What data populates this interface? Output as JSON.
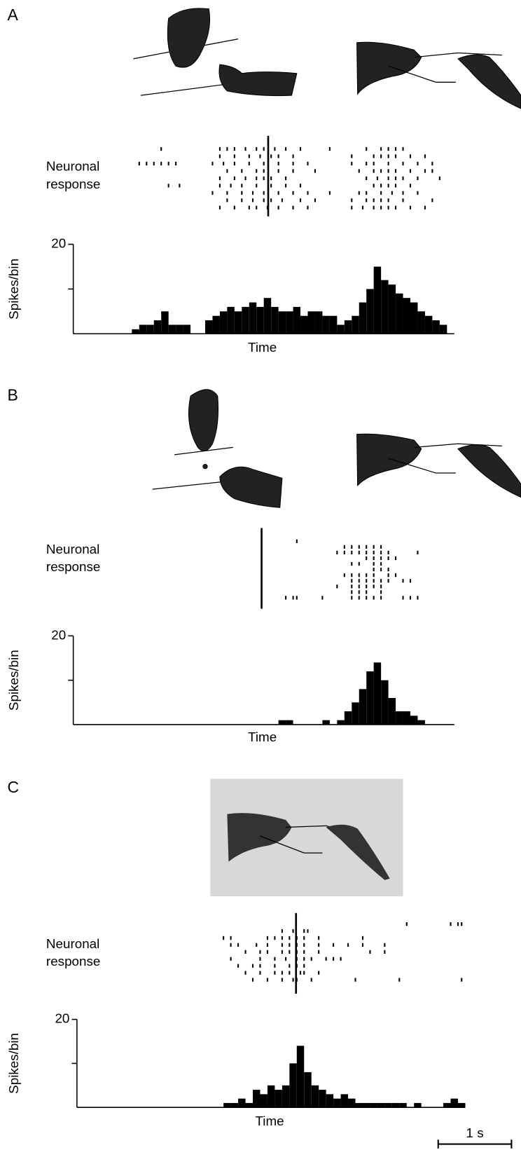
{
  "chart_data": [
    {
      "type": "histogram",
      "panel": "A",
      "raster_label": [
        "Neuronal",
        "response"
      ],
      "ylabel": "Spikes/bin",
      "xlabel": "Time",
      "color": "#000000",
      "xlim": [
        0,
        5.2
      ],
      "ylim": [
        0,
        20
      ],
      "yticks": [
        {
          "value": 10,
          "label": null
        },
        20
      ],
      "event_time": 2.66,
      "bins": [
        0,
        0.1,
        0.2,
        0.3,
        0.4,
        0.5,
        0.6,
        0.7,
        0.8,
        0.9,
        1.0,
        1.1,
        1.2,
        1.3,
        1.4,
        1.5,
        1.6,
        1.7,
        1.8,
        1.9,
        2.0,
        2.1,
        2.2,
        2.3,
        2.4,
        2.5,
        2.6,
        2.7,
        2.8,
        2.9,
        3.0,
        3.1,
        3.2,
        3.3,
        3.4,
        3.5,
        3.6,
        3.7,
        3.8,
        3.9,
        4.0,
        4.1,
        4.2,
        4.3,
        4.4,
        4.5,
        4.6,
        4.7,
        4.8,
        4.9,
        5.0,
        5.1,
        5.2
      ],
      "values": [
        0,
        0,
        0,
        0,
        0,
        0,
        0,
        0,
        1,
        2,
        2,
        3,
        5,
        2,
        2,
        2,
        0,
        0,
        3,
        4,
        5,
        6,
        5,
        6,
        7,
        6,
        8,
        6,
        5,
        5,
        6,
        4,
        5,
        5,
        4,
        4,
        2,
        3,
        4,
        7,
        10,
        15,
        12,
        11,
        9,
        8,
        7,
        5,
        4,
        3,
        2,
        0
      ],
      "raster": [
        [
          1.2,
          2.0,
          2.1,
          2.2,
          2.35,
          2.5,
          2.6,
          2.75,
          2.9,
          3.1,
          3.5,
          4.0,
          4.2,
          4.3,
          4.4,
          4.5
        ],
        [
          2.0,
          2.2,
          2.4,
          2.55,
          2.7,
          2.8,
          3.0,
          3.8,
          4.1,
          4.2,
          4.3,
          4.4,
          4.6,
          4.8
        ],
        [
          0.9,
          1.0,
          1.1,
          1.2,
          1.3,
          1.4,
          1.9,
          2.05,
          2.2,
          2.4,
          2.6,
          2.8,
          3.0,
          3.2,
          3.8,
          4.0,
          4.1,
          4.3,
          4.5,
          4.7,
          4.9
        ],
        [
          2.1,
          2.3,
          2.5,
          2.6,
          2.8,
          3.0,
          3.3,
          3.9,
          4.1,
          4.2,
          4.3,
          4.4,
          4.6,
          4.8,
          4.9
        ],
        [
          2.0,
          2.2,
          2.35,
          2.5,
          2.6,
          2.7,
          2.9,
          4.0,
          4.15,
          4.3,
          4.4,
          4.5,
          4.7,
          5.0
        ],
        [
          1.3,
          1.45,
          2.0,
          2.15,
          2.3,
          2.5,
          2.7,
          2.9,
          3.1,
          4.1,
          4.2,
          4.3,
          4.4,
          4.6
        ],
        [
          1.9,
          2.1,
          2.3,
          2.45,
          2.6,
          2.8,
          3.0,
          3.2,
          3.5,
          3.9,
          4.0,
          4.2,
          4.35,
          4.5,
          4.7
        ],
        [
          2.1,
          2.3,
          2.45,
          2.6,
          2.7,
          2.85,
          3.1,
          3.3,
          3.8,
          4.0,
          4.1,
          4.2,
          4.3,
          4.5,
          4.9
        ],
        [
          2.0,
          2.2,
          2.4,
          2.5,
          2.65,
          2.8,
          3.0,
          3.2,
          3.8,
          3.95,
          4.1,
          4.2,
          4.3,
          4.4,
          4.6,
          4.8
        ]
      ]
    },
    {
      "type": "histogram",
      "panel": "B",
      "raster_label": [
        "Neuronal",
        "response"
      ],
      "ylabel": "Spikes/bin",
      "xlabel": "Time",
      "color": "#000000",
      "xlim": [
        0,
        5.2
      ],
      "ylim": [
        0,
        20
      ],
      "yticks": [
        {
          "value": 10,
          "label": null
        },
        20
      ],
      "event_time": 2.57,
      "bins": [
        0,
        0.1,
        0.2,
        0.3,
        0.4,
        0.5,
        0.6,
        0.7,
        0.8,
        0.9,
        1.0,
        1.1,
        1.2,
        1.3,
        1.4,
        1.5,
        1.6,
        1.7,
        1.8,
        1.9,
        2.0,
        2.1,
        2.2,
        2.3,
        2.4,
        2.5,
        2.6,
        2.7,
        2.8,
        2.9,
        3.0,
        3.1,
        3.2,
        3.3,
        3.4,
        3.5,
        3.6,
        3.7,
        3.8,
        3.9,
        4.0,
        4.1,
        4.2,
        4.3,
        4.4,
        4.5,
        4.6,
        4.7,
        4.8,
        4.9,
        5.0,
        5.1,
        5.2
      ],
      "values": [
        0,
        0,
        0,
        0,
        0,
        0,
        0,
        0,
        0,
        0,
        0,
        0,
        0,
        0,
        0,
        0,
        0,
        0,
        0,
        0,
        0,
        0,
        0,
        0,
        0,
        0,
        0,
        0,
        1,
        1,
        0,
        0,
        0,
        0,
        1,
        0,
        1,
        3,
        5,
        8,
        12,
        14,
        10,
        6,
        3,
        3,
        2,
        1,
        0,
        0,
        0,
        0
      ],
      "raster": [
        [
          3.05
        ],
        [
          3.7,
          3.8,
          3.9,
          4.0,
          4.1,
          4.2
        ],
        [
          3.6,
          3.7,
          3.8,
          3.9,
          4.0,
          4.1,
          4.2,
          4.3,
          4.7
        ],
        [
          4.0,
          4.1,
          4.2,
          4.3,
          4.4
        ],
        [
          3.8,
          3.9,
          4.1,
          4.2
        ],
        [
          4.1,
          4.2,
          4.3
        ],
        [
          3.7,
          3.8,
          3.9,
          4.0,
          4.1,
          4.3,
          4.4
        ],
        [
          3.8,
          3.9,
          4.0,
          4.1,
          4.2,
          4.3,
          4.5,
          4.6
        ],
        [
          3.6,
          3.8,
          3.9,
          4.0,
          4.1,
          4.2
        ],
        [
          3.8,
          3.9,
          4.0,
          4.2
        ],
        [
          2.9,
          3.0,
          3.05,
          3.4,
          3.8,
          3.9,
          4.0,
          4.1,
          4.2,
          4.5,
          4.6,
          4.7
        ]
      ]
    },
    {
      "type": "histogram",
      "panel": "C",
      "raster_label": [
        "Neuronal",
        "response"
      ],
      "ylabel": "Spikes/bin",
      "xlabel": "Time",
      "color": "#000000",
      "xlim": [
        0,
        5.3
      ],
      "ylim": [
        0,
        20
      ],
      "yticks": [
        {
          "value": 10,
          "label": null
        },
        20
      ],
      "event_time": 2.99,
      "scale_bar": {
        "value": 1,
        "label": "1 s"
      },
      "bins": [
        0,
        0.1,
        0.2,
        0.3,
        0.4,
        0.5,
        0.6,
        0.7,
        0.8,
        0.9,
        1.0,
        1.1,
        1.2,
        1.3,
        1.4,
        1.5,
        1.6,
        1.7,
        1.8,
        1.9,
        2.0,
        2.1,
        2.2,
        2.3,
        2.4,
        2.5,
        2.6,
        2.7,
        2.8,
        2.9,
        3.0,
        3.1,
        3.2,
        3.3,
        3.4,
        3.5,
        3.6,
        3.7,
        3.8,
        3.9,
        4.0,
        4.1,
        4.2,
        4.3,
        4.4,
        4.5,
        4.6,
        4.7,
        4.8,
        4.9,
        5.0,
        5.1,
        5.2,
        5.3
      ],
      "values": [
        0,
        0,
        0,
        0,
        0,
        0,
        0,
        0,
        0,
        0,
        0,
        0,
        0,
        0,
        0,
        0,
        0,
        0,
        0,
        0,
        1,
        1,
        2,
        1,
        4,
        3,
        5,
        4,
        5,
        10,
        14,
        8,
        5,
        4,
        3,
        2,
        3,
        2,
        1,
        1,
        1,
        1,
        1,
        1,
        1,
        0,
        1,
        0,
        0,
        0,
        1,
        2,
        1
      ],
      "raster": [
        [
          4.5,
          5.1,
          5.2,
          5.25
        ],
        [
          2.8,
          2.95,
          3.1,
          3.15
        ],
        [
          2.0,
          2.1,
          2.6,
          2.7,
          2.8,
          2.9,
          3.0,
          3.1,
          3.3,
          3.9
        ],
        [
          2.1,
          2.2,
          2.45,
          2.6,
          2.8,
          2.9,
          3.0,
          3.1,
          3.3,
          3.5,
          3.7,
          3.9,
          4.2
        ],
        [
          2.3,
          2.5,
          2.6,
          2.8,
          2.9,
          3.0,
          3.1,
          3.3,
          4.0,
          4.2
        ],
        [
          2.1,
          2.5,
          2.7,
          2.85,
          3.0,
          3.1,
          3.2,
          3.4,
          3.5,
          3.6
        ],
        [
          2.2,
          2.4,
          2.5,
          2.7,
          2.9,
          3.0,
          3.1
        ],
        [
          2.3,
          2.5,
          2.7,
          2.8,
          2.9,
          3.05,
          3.1,
          3.3
        ],
        [
          2.4,
          2.6,
          2.8,
          2.95,
          3.0,
          3.2,
          3.8,
          4.4,
          5.25
        ]
      ]
    }
  ]
}
